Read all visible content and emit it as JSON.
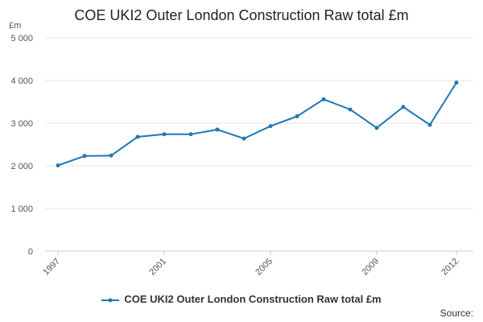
{
  "chart_data": {
    "type": "line",
    "title": "COE UKI2 Outer London Construction Raw total £m",
    "ylabel": "£m",
    "xlabel": "",
    "ylim": [
      0,
      5000
    ],
    "y_ticks": [
      0,
      1000,
      2000,
      3000,
      4000,
      5000
    ],
    "y_tick_labels": [
      "0",
      "1 000",
      "2 000",
      "3 000",
      "4 000",
      "5 000"
    ],
    "x_tick_labels": [
      {
        "x": 1997,
        "label": "1997"
      },
      {
        "x": 2001,
        "label": "2001"
      },
      {
        "x": 2005,
        "label": "2005"
      },
      {
        "x": 2009,
        "label": "2009"
      },
      {
        "x": 2012,
        "label": "2012"
      }
    ],
    "xlim": [
      1997,
      2012
    ],
    "grid": "horizontal",
    "legend_position": "bottom",
    "series": [
      {
        "name": "COE UKI2 Outer London Construction Raw total £m",
        "color": "#1f78b4",
        "x": [
          1997,
          1998,
          1999,
          2000,
          2001,
          2002,
          2003,
          2004,
          2005,
          2006,
          2007,
          2008,
          2009,
          2010,
          2011,
          2012
        ],
        "values": [
          2010,
          2230,
          2240,
          2680,
          2740,
          2740,
          2850,
          2640,
          2930,
          3160,
          3560,
          3320,
          2890,
          3380,
          2960,
          3950
        ]
      }
    ]
  },
  "source_label": "Source:"
}
